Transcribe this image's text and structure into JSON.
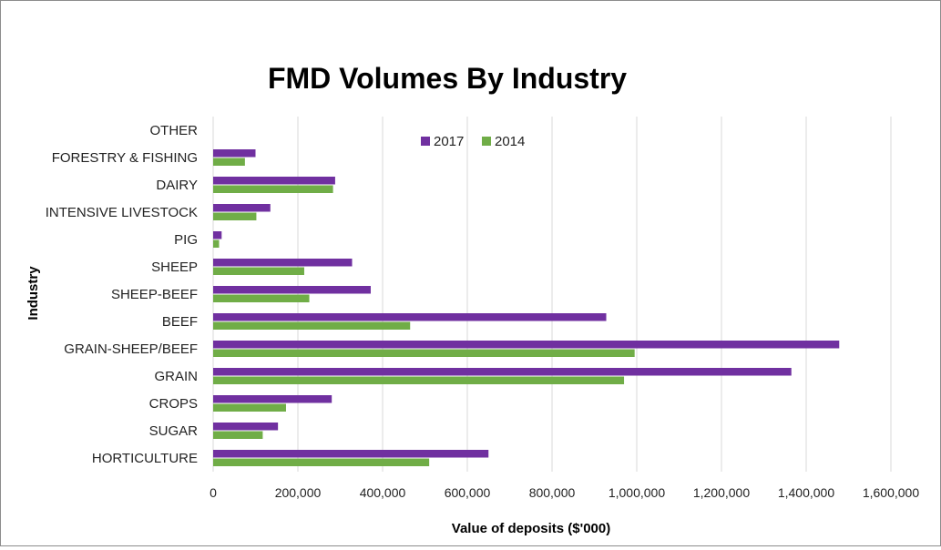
{
  "chart_data": {
    "type": "bar",
    "orientation": "horizontal",
    "title": "FMD Volumes By Industry",
    "xlabel": "Value of deposits ($'000)",
    "ylabel": "Industry",
    "categories": [
      "OTHER",
      "FORESTRY & FISHING",
      "DAIRY",
      "INTENSIVE LIVESTOCK",
      "PIG",
      "SHEEP",
      "SHEEP-BEEF",
      "BEEF",
      "GRAIN-SHEEP/BEEF",
      "GRAIN",
      "CROPS",
      "SUGAR",
      "HORTICULTURE"
    ],
    "series": [
      {
        "name": "2017",
        "color": "#7030a0",
        "values": [
          0,
          100000,
          288000,
          135000,
          20000,
          328000,
          372000,
          928000,
          1478000,
          1365000,
          280000,
          153000,
          650000
        ]
      },
      {
        "name": "2014",
        "color": "#70ad47",
        "values": [
          0,
          75000,
          283000,
          102000,
          14000,
          215000,
          227000,
          465000,
          995000,
          970000,
          172000,
          117000,
          510000
        ]
      }
    ],
    "xlim": [
      0,
      1600000
    ],
    "xticks": [
      "0",
      "200,000",
      "400,000",
      "600,000",
      "800,000",
      "1,000,000",
      "1,200,000",
      "1,400,000",
      "1,600,000"
    ],
    "grid": true,
    "legend_position": "top-center"
  }
}
